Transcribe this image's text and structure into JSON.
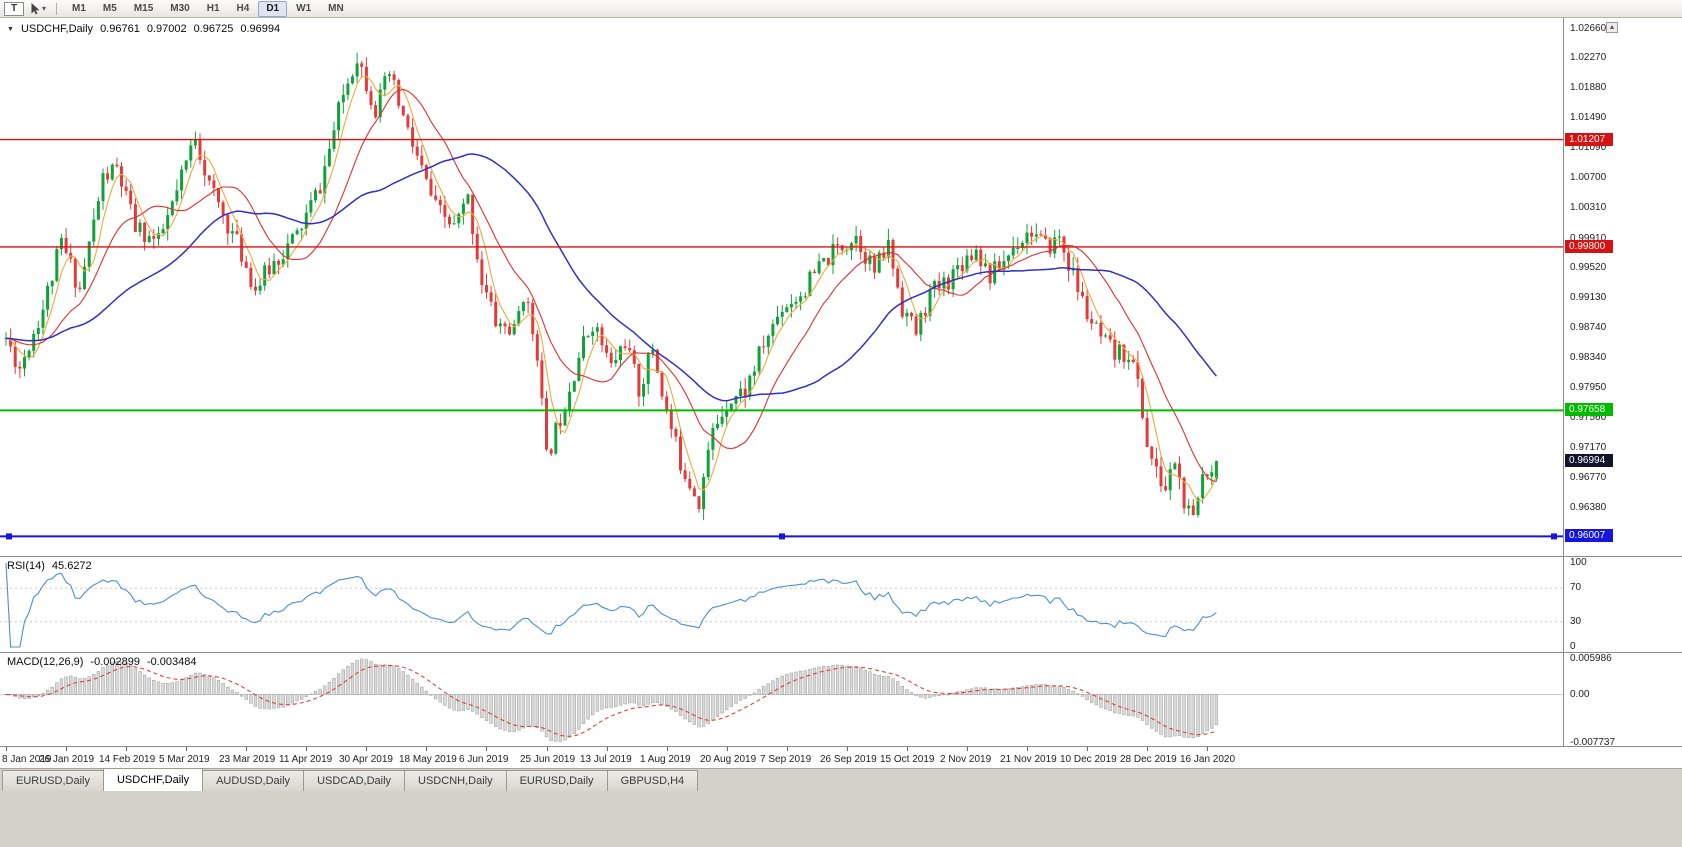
{
  "toolbar": {
    "text_tool_label": "T",
    "chevron_icon": "▾",
    "timeframes": [
      "M1",
      "M5",
      "M15",
      "M30",
      "H1",
      "H4",
      "D1",
      "W1",
      "MN"
    ],
    "active_timeframe": "D1"
  },
  "chart": {
    "title": {
      "dropdown_icon": "▼",
      "symbol": "USDCHF,Daily",
      "open": "0.96761",
      "high": "0.97002",
      "low": "0.96725",
      "close": "0.96994"
    },
    "scroll_up_icon": "▲",
    "view": {
      "price_top": 1.028,
      "price_bottom": 0.9575
    },
    "colors": {
      "up": "#11a13a",
      "down": "#e13b3b"
    },
    "price_axis": [
      "1.02660",
      "1.02270",
      "1.01880",
      "1.01490",
      "1.01090",
      "1.00700",
      "1.00310",
      "0.99910",
      "0.99520",
      "0.99130",
      "0.98740",
      "0.98340",
      "0.97950",
      "0.97560",
      "0.97170",
      "0.96770",
      "0.96380"
    ],
    "levels": [
      {
        "name": "resistance-upper",
        "price": 1.01207,
        "label": "1.01207",
        "color": "#d61313",
        "width": 1.4
      },
      {
        "name": "resistance-mid",
        "price": 0.998,
        "label": "0.99800",
        "color": "#d61313",
        "width": 1.4
      },
      {
        "name": "support-green",
        "price": 0.97658,
        "label": "0.97658",
        "color": "#00bb00",
        "width": 2
      },
      {
        "name": "support-lower",
        "price": 0.96007,
        "label": "0.96007",
        "color": "#1515dd",
        "width": 2,
        "selected": true
      }
    ],
    "current_price": {
      "label": "0.96994",
      "value": 0.96994,
      "bg": "#13132e"
    }
  },
  "rsi": {
    "label": "RSI(14)",
    "value": "45.6272",
    "color": "#4a90d0",
    "axis": [
      "100",
      "70",
      "30",
      "0"
    ],
    "levels": [
      70,
      30
    ]
  },
  "macd": {
    "label": "MACD(12,26,9)",
    "main_value": "-0.002899",
    "signal_value": "-0.003484",
    "axis_top": "0.005986",
    "axis_zero": "0.00",
    "axis_bottom": "-0.007737",
    "histogram_color": "#d9d9d9",
    "histogram_border": "#9b9b9b",
    "signal_color": "#e03030"
  },
  "date_axis": [
    "8 Jan 2019",
    "26 Jan 2019",
    "14 Feb 2019",
    "5 Mar 2019",
    "23 Mar 2019",
    "11 Apr 2019",
    "30 Apr 2019",
    "18 May 2019",
    "6 Jun 2019",
    "25 Jun 2019",
    "13 Jul 2019",
    "1 Aug 2019",
    "20 Aug 2019",
    "7 Sep 2019",
    "26 Sep 2019",
    "15 Oct 2019",
    "2 Nov 2019",
    "21 Nov 2019",
    "10 Dec 2019",
    "28 Dec 2019",
    "16 Jan 2020"
  ],
  "tabs": [
    {
      "label": "EURUSD,Daily",
      "active": false
    },
    {
      "label": "USDCHF,Daily",
      "active": true
    },
    {
      "label": "AUDUSD,Daily",
      "active": false
    },
    {
      "label": "USDCAD,Daily",
      "active": false
    },
    {
      "label": "USDCNH,Daily",
      "active": false
    },
    {
      "label": "EURUSD,Daily",
      "active": false
    },
    {
      "label": "GBPUSD,H4",
      "active": false
    }
  ],
  "chart_data": {
    "type": "candlestick",
    "symbol": "USDCHF",
    "timeframe": "Daily",
    "bars": 263,
    "bars_per_label": 13,
    "noise_seed": 11,
    "noise": 0.0028,
    "wick": 0.0015,
    "last_bar": {
      "o": 0.96761,
      "h": 0.97002,
      "l": 0.96725,
      "c": 0.96994
    },
    "keypoints": [
      [
        0,
        0.986
      ],
      [
        3,
        0.9822
      ],
      [
        8,
        0.99
      ],
      [
        12,
        0.9985
      ],
      [
        16,
        0.9925
      ],
      [
        21,
        1.007
      ],
      [
        24,
        1.0082
      ],
      [
        28,
        1.0005
      ],
      [
        33,
        0.9985
      ],
      [
        37,
        1.005
      ],
      [
        41,
        1.0128
      ],
      [
        44,
        1.006
      ],
      [
        50,
        0.9985
      ],
      [
        54,
        0.9925
      ],
      [
        58,
        0.996
      ],
      [
        63,
        0.9995
      ],
      [
        68,
        1.006
      ],
      [
        73,
        1.018
      ],
      [
        76,
        1.0232
      ],
      [
        80,
        1.016
      ],
      [
        83,
        1.0205
      ],
      [
        87,
        1.013
      ],
      [
        93,
        1.003
      ],
      [
        97,
        1.0005
      ],
      [
        100,
        1.0042
      ],
      [
        103,
        0.9935
      ],
      [
        106,
        0.9882
      ],
      [
        110,
        0.9868
      ],
      [
        112,
        0.992
      ],
      [
        115,
        0.9845
      ],
      [
        117,
        0.9702
      ],
      [
        120,
        0.9758
      ],
      [
        124,
        0.9838
      ],
      [
        127,
        0.9882
      ],
      [
        131,
        0.9822
      ],
      [
        134,
        0.9858
      ],
      [
        137,
        0.9792
      ],
      [
        140,
        0.9848
      ],
      [
        143,
        0.9762
      ],
      [
        146,
        0.9698
      ],
      [
        150,
        0.9648
      ],
      [
        153,
        0.9738
      ],
      [
        156,
        0.9778
      ],
      [
        160,
        0.9792
      ],
      [
        164,
        0.9852
      ],
      [
        168,
        0.9902
      ],
      [
        172,
        0.9918
      ],
      [
        176,
        0.9952
      ],
      [
        180,
        0.9978
      ],
      [
        184,
        0.9995
      ],
      [
        188,
        0.9948
      ],
      [
        191,
        0.9982
      ],
      [
        194,
        0.9902
      ],
      [
        197,
        0.9868
      ],
      [
        200,
        0.9918
      ],
      [
        204,
        0.9938
      ],
      [
        207,
        0.9962
      ],
      [
        210,
        0.9978
      ],
      [
        213,
        0.9942
      ],
      [
        216,
        0.9962
      ],
      [
        219,
        0.9988
      ],
      [
        222,
        1.0002
      ],
      [
        225,
        0.9978
      ],
      [
        228,
        0.9992
      ],
      [
        231,
        0.9942
      ],
      [
        234,
        0.9892
      ],
      [
        237,
        0.9858
      ],
      [
        240,
        0.9838
      ],
      [
        243,
        0.9842
      ],
      [
        245,
        0.9802
      ],
      [
        247,
        0.9722
      ],
      [
        249,
        0.9682
      ],
      [
        251,
        0.9662
      ],
      [
        253,
        0.9702
      ],
      [
        255,
        0.9642
      ],
      [
        257,
        0.9618
      ],
      [
        259,
        0.9682
      ],
      [
        261,
        0.9695
      ],
      [
        262,
        0.96994
      ]
    ],
    "moving_averages": [
      {
        "period": 5,
        "color": "#efa93c",
        "width": 1.1
      },
      {
        "period": 15,
        "color": "#e03030",
        "width": 1.1
      },
      {
        "period": 40,
        "color": "#3030c8",
        "width": 1.5
      }
    ]
  }
}
